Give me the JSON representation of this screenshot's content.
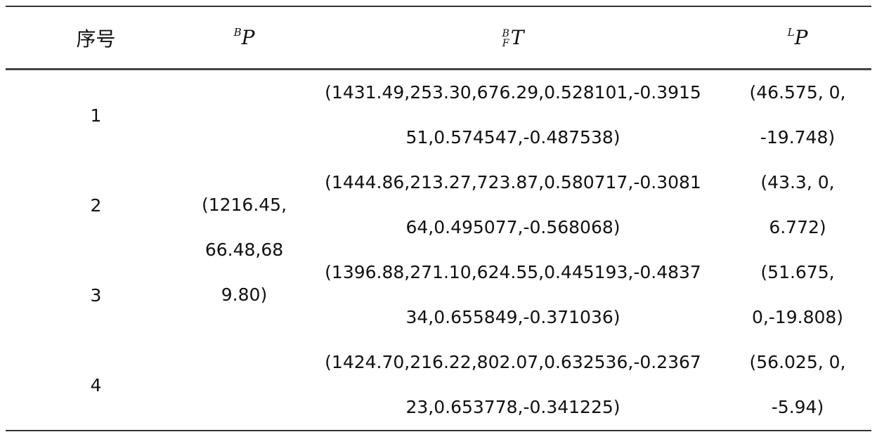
{
  "table": {
    "header": {
      "index": "序号",
      "bp": {
        "sup": "B",
        "main": "P"
      },
      "t": {
        "sup": "B",
        "sub": "F",
        "main": "T"
      },
      "lp": {
        "sup": "L",
        "main": "P"
      }
    },
    "bp_value": [
      "(1216.45,",
      "66.48,68",
      "9.80)"
    ],
    "rows": [
      {
        "index": "1",
        "t": [
          "(1431.49,253.30,676.29,0.528101,-0.3915",
          "51,0.574547,-0.487538)"
        ],
        "lp": [
          "(46.575, 0,",
          "-19.748)"
        ]
      },
      {
        "index": "2",
        "t": [
          "(1444.86,213.27,723.87,0.580717,-0.3081",
          "64,0.495077,-0.568068)"
        ],
        "lp": [
          "(43.3, 0,",
          "6.772)"
        ]
      },
      {
        "index": "3",
        "t": [
          "(1396.88,271.10,624.55,0.445193,-0.4837",
          "34,0.655849,-0.371036)"
        ],
        "lp": [
          "(51.675,",
          "0,-19.808)"
        ]
      },
      {
        "index": "4",
        "t": [
          "(1424.70,216.22,802.07,0.632536,-0.2367",
          "23,0.653778,-0.341225)"
        ],
        "lp": [
          "(56.025, 0,",
          "-5.94)"
        ]
      }
    ]
  }
}
